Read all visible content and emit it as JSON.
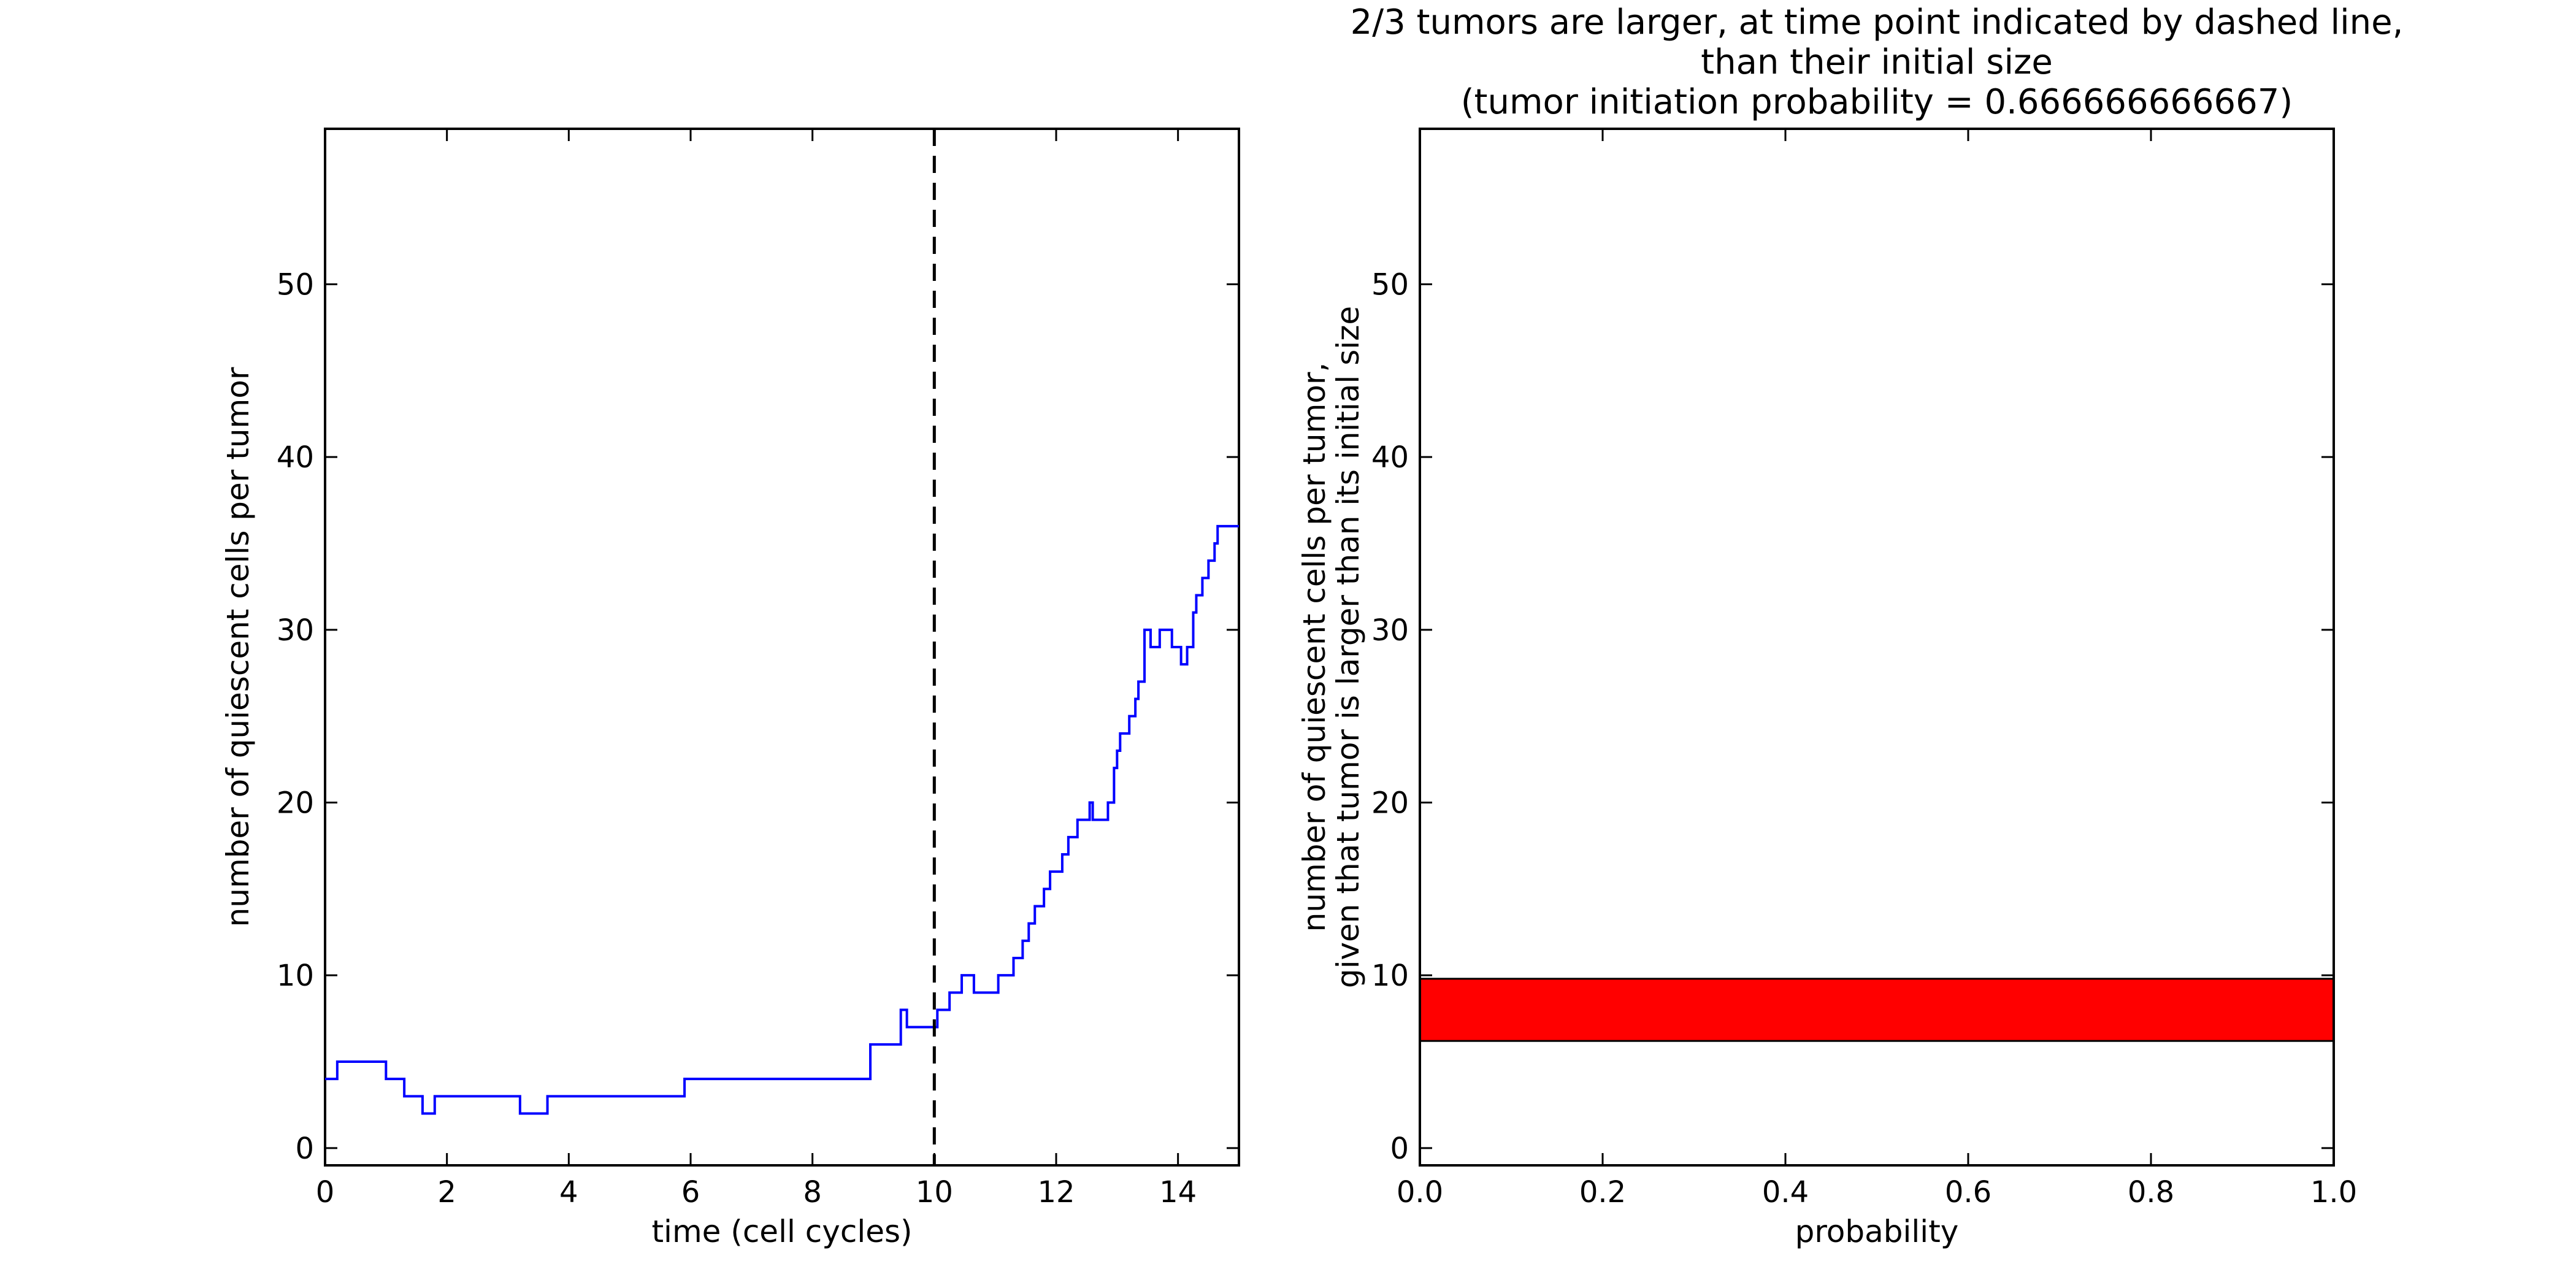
{
  "chart_data": [
    {
      "type": "line",
      "title": "",
      "xlabel": "time (cell cycles)",
      "ylabel": "number of quiescent cells per tumor",
      "xlim": [
        0,
        15
      ],
      "ylim": [
        -1,
        59
      ],
      "xticks": [
        0,
        2,
        4,
        6,
        8,
        10,
        12,
        14
      ],
      "xtick_labels": [
        "0",
        "2",
        "4",
        "6",
        "8",
        "10",
        "12",
        "14"
      ],
      "yticks": [
        0,
        10,
        20,
        30,
        40,
        50
      ],
      "ytick_labels": [
        "0",
        "10",
        "20",
        "30",
        "40",
        "50"
      ],
      "grid": false,
      "legend": "none",
      "vline": {
        "x": 10,
        "style": "dashed",
        "color": "#000000"
      },
      "series": [
        {
          "color": "#0000ff",
          "step": true,
          "x": [
            0,
            0.2,
            1.0,
            1.3,
            1.6,
            1.8,
            3.2,
            3.65,
            5.9,
            8.95,
            9.45,
            9.55,
            9.7,
            10.05,
            10.25,
            10.45,
            10.65,
            10.9,
            11.05,
            11.3,
            11.45,
            11.55,
            11.65,
            11.8,
            11.9,
            12.0,
            12.1,
            12.2,
            12.3,
            12.35,
            12.55,
            12.6,
            12.7,
            12.85,
            12.95,
            13.0,
            13.05,
            13.1,
            13.2,
            13.3,
            13.35,
            13.45,
            13.55,
            13.6,
            13.7,
            13.9,
            14.05,
            14.15,
            14.25,
            14.3,
            14.4,
            14.5,
            14.55,
            14.6,
            14.65,
            14.75,
            14.85,
            15.0
          ],
          "y": [
            4,
            5,
            4,
            3,
            2,
            3,
            2,
            3,
            4,
            6,
            8,
            7,
            7,
            8,
            9,
            10,
            9,
            9,
            10,
            11,
            12,
            13,
            14,
            15,
            16,
            16,
            17,
            18,
            18,
            19,
            20,
            19,
            19,
            20,
            22,
            23,
            24,
            24,
            25,
            26,
            27,
            30,
            29,
            29,
            30,
            29,
            28,
            29,
            31,
            32,
            33,
            34,
            34,
            35,
            36,
            36,
            36,
            36
          ]
        }
      ]
    },
    {
      "type": "bar",
      "orientation": "horizontal",
      "title": "2/3 tumors are larger, at time point indicated by dashed line,\nthan their initial size\n(tumor initiation probability = 0.666666666667)",
      "title_lines": [
        "2/3 tumors are larger, at time point indicated by dashed line,",
        "than their initial size",
        "(tumor initiation probability = 0.666666666667)"
      ],
      "xlabel": "probability",
      "ylabel": "number of quiescent cells per tumor,\ngiven that tumor is larger than its initial size",
      "ylabel_lines": [
        "number of quiescent cells per tumor,",
        "given that tumor is larger than its initial size"
      ],
      "xlim": [
        0,
        1.0
      ],
      "ylim": [
        -1,
        59
      ],
      "xticks": [
        0,
        0.2,
        0.4,
        0.6,
        0.8,
        1.0
      ],
      "xtick_labels": [
        "0.0",
        "0.2",
        "0.4",
        "0.6",
        "0.8",
        "1.0"
      ],
      "yticks": [
        0,
        10,
        20,
        30,
        40,
        50
      ],
      "ytick_labels": [
        "0",
        "10",
        "20",
        "30",
        "40",
        "50"
      ],
      "grid": false,
      "legend": "none",
      "bars": [
        {
          "category": 8,
          "value": 1.0,
          "range": [
            6.2,
            9.8
          ],
          "color": "#ff0000"
        }
      ]
    }
  ]
}
